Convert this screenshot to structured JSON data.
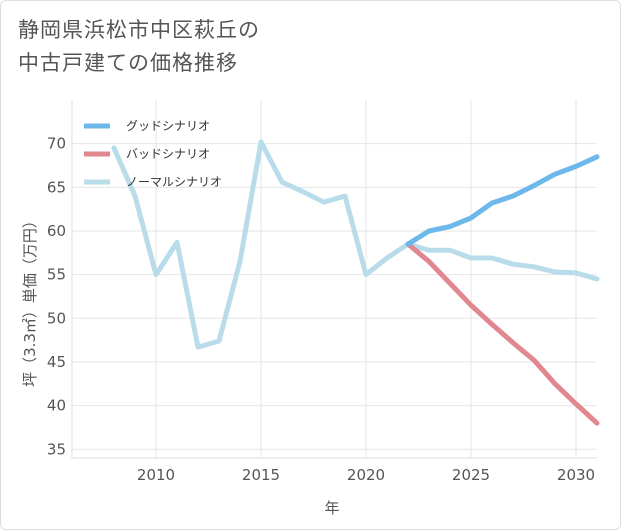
{
  "title": {
    "line1": "静岡県浜松市中区萩丘の",
    "line2": "中古戸建ての価格推移"
  },
  "chart_data": {
    "type": "line",
    "xlabel": "年",
    "ylabel": "坪（3.3㎡）単価（万円）",
    "xlim": [
      2006,
      2031
    ],
    "ylim": [
      34,
      75
    ],
    "xticks": [
      2010,
      2015,
      2020,
      2025,
      2030
    ],
    "yticks": [
      35,
      40,
      45,
      50,
      55,
      60,
      65,
      70
    ],
    "grid": true,
    "legend_position": "top-left",
    "series": [
      {
        "name": "グッドシナリオ",
        "color": "#6cb8ea",
        "x": [
          2022,
          2023,
          2024,
          2025,
          2026,
          2027,
          2028,
          2029,
          2030,
          2031
        ],
        "y": [
          58.5,
          60.0,
          60.5,
          61.5,
          63.2,
          64.0,
          65.2,
          66.5,
          67.4,
          68.5
        ]
      },
      {
        "name": "バッドシナリオ",
        "color": "#e0878f",
        "x": [
          2022,
          2023,
          2024,
          2025,
          2026,
          2027,
          2028,
          2029,
          2030,
          2031
        ],
        "y": [
          58.5,
          56.5,
          54.0,
          51.5,
          49.3,
          47.2,
          45.2,
          42.5,
          40.2,
          38.0
        ]
      },
      {
        "name": "ノーマルシナリオ",
        "color": "#b8dcea",
        "x": [
          2008,
          2009,
          2010,
          2011,
          2012,
          2013,
          2014,
          2015,
          2016,
          2017,
          2018,
          2019,
          2020,
          2021,
          2022,
          2023,
          2024,
          2025,
          2026,
          2027,
          2028,
          2029,
          2030,
          2031
        ],
        "y": [
          69.5,
          64.0,
          55.0,
          58.7,
          46.7,
          47.4,
          56.5,
          70.2,
          65.6,
          64.5,
          63.3,
          64.0,
          55.0,
          56.9,
          58.5,
          57.8,
          57.8,
          56.9,
          56.9,
          56.2,
          55.9,
          55.3,
          55.2,
          54.5
        ]
      }
    ]
  }
}
